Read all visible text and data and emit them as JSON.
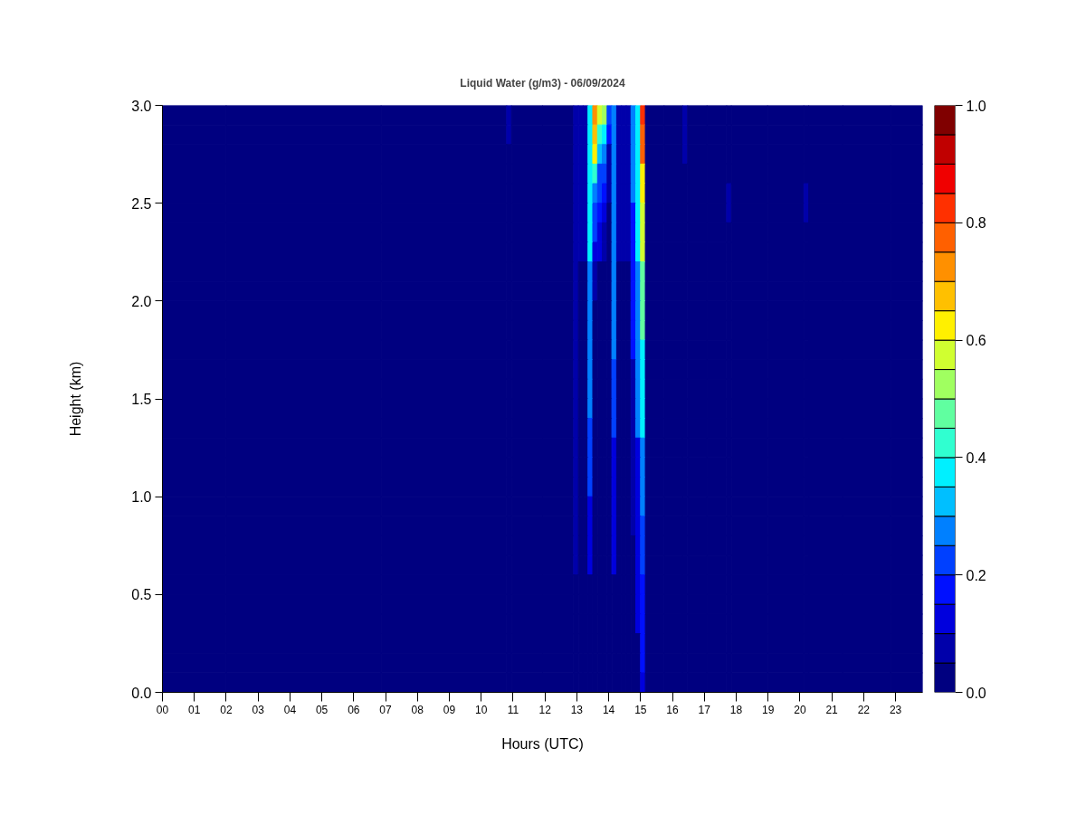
{
  "chart_data": {
    "type": "heatmap",
    "title": "Liquid Water (g/m3) - 06/09/2024",
    "xlabel": "Hours (UTC)",
    "ylabel": "Height (km)",
    "x": [
      1,
      3,
      10.725,
      10.875,
      11.025,
      12.825,
      12.975,
      13.125,
      13.275,
      13.425,
      13.575,
      13.725,
      13.875,
      14.025,
      14.175,
      14.325,
      14.475,
      14.625,
      14.775,
      14.925,
      15.075,
      15.225,
      16.25,
      16.4,
      16.55,
      17.625,
      17.775,
      17.925,
      20.05,
      20.2,
      20.35,
      22.35,
      23.35
    ],
    "cells": [
      [
        0,
        0,
        0,
        0.06,
        0,
        0,
        0.08,
        0.07,
        0.07,
        0.37,
        0.72,
        0.57,
        0.52,
        0.22,
        0.28,
        0.08,
        0.08,
        0.08,
        0.28,
        0.38,
        0.82,
        0,
        0,
        0.06,
        0,
        0,
        0,
        0,
        0,
        0,
        0,
        0,
        0
      ],
      [
        0,
        0,
        0,
        0.06,
        0,
        0,
        0.08,
        0.07,
        0.07,
        0.37,
        0.67,
        0.42,
        0.37,
        0.17,
        0.28,
        0.08,
        0.08,
        0.08,
        0.28,
        0.38,
        0.77,
        0,
        0,
        0.06,
        0,
        0,
        0,
        0,
        0,
        0,
        0,
        0,
        0
      ],
      [
        0,
        0,
        0,
        0,
        0,
        0,
        0.08,
        0.07,
        0.07,
        0.37,
        0.62,
        0.32,
        0.28,
        0.08,
        0.28,
        0.08,
        0.08,
        0.08,
        0.28,
        0.38,
        0.77,
        0,
        0,
        0.06,
        0,
        0,
        0,
        0,
        0,
        0,
        0,
        0,
        0
      ],
      [
        0,
        0,
        0,
        0,
        0,
        0,
        0.08,
        0.07,
        0.07,
        0.37,
        0.42,
        0.22,
        0.22,
        0.08,
        0.28,
        0.08,
        0.08,
        0.08,
        0.28,
        0.38,
        0.63,
        0,
        0,
        0,
        0,
        0,
        0,
        0,
        0,
        0,
        0,
        0,
        0
      ],
      [
        0,
        0,
        0,
        0,
        0,
        0,
        0.08,
        0.07,
        0.07,
        0.37,
        0.28,
        0.22,
        0.17,
        0.08,
        0.28,
        0.06,
        0.06,
        0.06,
        0.28,
        0.38,
        0.63,
        0,
        0,
        0,
        0,
        0,
        0.06,
        0,
        0,
        0.06,
        0,
        0,
        0
      ],
      [
        0,
        0,
        0,
        0,
        0,
        0,
        0.08,
        0.07,
        0.07,
        0.37,
        0.22,
        0.17,
        0.12,
        0,
        0.28,
        0.06,
        0.06,
        0.06,
        0.17,
        0.38,
        0.58,
        0,
        0,
        0,
        0,
        0,
        0.06,
        0,
        0,
        0.06,
        0,
        0,
        0
      ],
      [
        0,
        0,
        0,
        0,
        0,
        0,
        0.08,
        0.07,
        0.07,
        0.37,
        0.22,
        0.12,
        0.08,
        0,
        0.28,
        0.06,
        0.06,
        0.06,
        0.17,
        0.38,
        0.58,
        0,
        0,
        0,
        0,
        0,
        0,
        0,
        0,
        0,
        0,
        0,
        0
      ],
      [
        0,
        0,
        0,
        0,
        0,
        0,
        0.08,
        0.07,
        0.07,
        0.37,
        0.12,
        0.12,
        0.08,
        0,
        0.28,
        0.06,
        0.06,
        0.06,
        0.17,
        0.38,
        0.58,
        0,
        0,
        0,
        0,
        0,
        0,
        0,
        0,
        0,
        0,
        0,
        0
      ],
      [
        0,
        0,
        0,
        0,
        0,
        0,
        0.06,
        0,
        0,
        0.27,
        0.06,
        0,
        0,
        0,
        0.28,
        0,
        0,
        0,
        0.17,
        0.26,
        0.48,
        0,
        0,
        0,
        0,
        0,
        0,
        0,
        0,
        0,
        0,
        0,
        0
      ],
      [
        0,
        0,
        0,
        0,
        0,
        0,
        0.06,
        0,
        0,
        0.27,
        0.06,
        0,
        0,
        0,
        0.28,
        0,
        0,
        0,
        0.17,
        0.26,
        0.48,
        0,
        0,
        0,
        0,
        0,
        0,
        0,
        0,
        0,
        0,
        0,
        0
      ],
      [
        0,
        0,
        0,
        0,
        0,
        0,
        0.06,
        0,
        0,
        0.27,
        0,
        0,
        0,
        0,
        0.28,
        0,
        0,
        0,
        0.17,
        0.26,
        0.48,
        0,
        0,
        0,
        0,
        0,
        0,
        0,
        0,
        0,
        0,
        0,
        0
      ],
      [
        0,
        0,
        0,
        0,
        0,
        0,
        0.06,
        0,
        0,
        0.27,
        0,
        0,
        0,
        0,
        0.28,
        0,
        0,
        0,
        0.17,
        0.26,
        0.48,
        0,
        0,
        0,
        0,
        0,
        0,
        0,
        0,
        0,
        0,
        0,
        0
      ],
      [
        0,
        0,
        0,
        0,
        0,
        0,
        0.06,
        0,
        0,
        0.27,
        0,
        0,
        0,
        0,
        0.28,
        0,
        0,
        0,
        0.17,
        0.26,
        0.38,
        0,
        0,
        0,
        0,
        0,
        0,
        0,
        0,
        0,
        0,
        0,
        0
      ],
      [
        0,
        0,
        0,
        0,
        0,
        0,
        0.06,
        0,
        0,
        0.27,
        0,
        0,
        0,
        0,
        0.22,
        0,
        0,
        0,
        0.07,
        0.26,
        0.38,
        0,
        0,
        0,
        0,
        0,
        0,
        0,
        0,
        0,
        0,
        0,
        0
      ],
      [
        0,
        0,
        0,
        0,
        0,
        0,
        0.06,
        0,
        0,
        0.27,
        0,
        0,
        0,
        0,
        0.22,
        0,
        0,
        0,
        0.07,
        0.26,
        0.38,
        0,
        0,
        0,
        0,
        0,
        0,
        0,
        0,
        0,
        0,
        0,
        0
      ],
      [
        0,
        0,
        0,
        0,
        0,
        0,
        0.06,
        0,
        0,
        0.27,
        0,
        0,
        0,
        0,
        0.22,
        0,
        0,
        0,
        0.07,
        0.26,
        0.38,
        0,
        0,
        0,
        0,
        0,
        0,
        0,
        0,
        0,
        0,
        0,
        0
      ],
      [
        0,
        0,
        0,
        0,
        0,
        0,
        0.06,
        0,
        0,
        0.22,
        0,
        0,
        0,
        0,
        0.22,
        0,
        0,
        0,
        0.07,
        0.26,
        0.38,
        0,
        0,
        0,
        0,
        0,
        0,
        0,
        0,
        0,
        0,
        0,
        0
      ],
      [
        0,
        0,
        0,
        0,
        0,
        0,
        0.06,
        0,
        0,
        0.22,
        0,
        0,
        0,
        0,
        0.12,
        0,
        0,
        0,
        0.07,
        0.12,
        0.28,
        0,
        0,
        0,
        0,
        0,
        0,
        0,
        0,
        0,
        0,
        0,
        0
      ],
      [
        0,
        0,
        0,
        0,
        0,
        0,
        0.06,
        0,
        0,
        0.22,
        0,
        0,
        0,
        0,
        0.12,
        0,
        0,
        0,
        0.07,
        0.12,
        0.28,
        0,
        0,
        0,
        0,
        0,
        0,
        0,
        0,
        0,
        0,
        0,
        0
      ],
      [
        0,
        0,
        0,
        0,
        0,
        0,
        0.06,
        0,
        0,
        0.22,
        0,
        0,
        0,
        0,
        0.12,
        0,
        0,
        0,
        0.07,
        0.12,
        0.28,
        0,
        0,
        0,
        0,
        0,
        0,
        0,
        0,
        0,
        0,
        0,
        0
      ],
      [
        0,
        0,
        0,
        0,
        0,
        0,
        0.06,
        0,
        0,
        0.12,
        0,
        0,
        0,
        0,
        0.12,
        0,
        0,
        0,
        0.07,
        0.12,
        0.28,
        0,
        0,
        0,
        0,
        0,
        0,
        0,
        0,
        0,
        0,
        0,
        0
      ],
      [
        0,
        0,
        0,
        0,
        0,
        0,
        0.06,
        0,
        0,
        0.12,
        0,
        0,
        0,
        0,
        0.12,
        0,
        0,
        0,
        0.07,
        0.12,
        0.22,
        0,
        0,
        0,
        0,
        0,
        0,
        0,
        0,
        0,
        0,
        0,
        0
      ],
      [
        0,
        0,
        0,
        0,
        0,
        0,
        0.06,
        0,
        0,
        0.12,
        0,
        0,
        0,
        0,
        0.12,
        0,
        0,
        0,
        0,
        0.12,
        0.22,
        0,
        0,
        0,
        0,
        0,
        0,
        0,
        0,
        0,
        0,
        0,
        0
      ],
      [
        0,
        0,
        0,
        0,
        0,
        0,
        0.06,
        0,
        0,
        0.12,
        0,
        0,
        0,
        0,
        0.12,
        0,
        0,
        0,
        0,
        0.12,
        0.22,
        0,
        0,
        0,
        0,
        0,
        0,
        0,
        0,
        0,
        0,
        0,
        0
      ],
      [
        0,
        0,
        0,
        0,
        0,
        0,
        0,
        0,
        0,
        0,
        0,
        0,
        0,
        0,
        0,
        0,
        0,
        0,
        0,
        0.12,
        0.17,
        0,
        0,
        0,
        0,
        0,
        0,
        0,
        0,
        0,
        0,
        0,
        0
      ],
      [
        0,
        0,
        0,
        0,
        0,
        0,
        0,
        0,
        0,
        0,
        0,
        0,
        0,
        0,
        0,
        0,
        0,
        0,
        0,
        0.12,
        0.17,
        0,
        0,
        0,
        0,
        0,
        0,
        0,
        0,
        0,
        0,
        0,
        0
      ],
      [
        0,
        0,
        0,
        0,
        0,
        0,
        0,
        0,
        0,
        0,
        0,
        0,
        0,
        0,
        0,
        0,
        0,
        0,
        0,
        0.12,
        0.17,
        0,
        0,
        0,
        0,
        0,
        0,
        0,
        0,
        0,
        0,
        0,
        0
      ],
      [
        0,
        0,
        0,
        0,
        0,
        0,
        0,
        0,
        0,
        0,
        0,
        0,
        0,
        0,
        0,
        0,
        0,
        0,
        0,
        0,
        0.17,
        0,
        0,
        0,
        0,
        0,
        0,
        0,
        0,
        0,
        0,
        0,
        0
      ],
      [
        0,
        0,
        0,
        0,
        0,
        0,
        0,
        0,
        0,
        0,
        0,
        0,
        0,
        0,
        0,
        0,
        0,
        0,
        0,
        0,
        0.17,
        0,
        0,
        0,
        0,
        0,
        0,
        0,
        0,
        0,
        0,
        0,
        0
      ],
      [
        0,
        0,
        0,
        0,
        0,
        0,
        0,
        0,
        0,
        0,
        0,
        0,
        0,
        0,
        0,
        0,
        0,
        0,
        0,
        0,
        0.12,
        0,
        0,
        0,
        0,
        0,
        0,
        0,
        0,
        0,
        0,
        0,
        0
      ]
    ],
    "xlim": [
      0,
      23.85
    ],
    "xticks": [
      {
        "value": 0,
        "label": "00"
      },
      {
        "value": 1,
        "label": "01"
      },
      {
        "value": 2,
        "label": "02"
      },
      {
        "value": 3,
        "label": "03"
      },
      {
        "value": 4,
        "label": "04"
      },
      {
        "value": 5,
        "label": "05"
      },
      {
        "value": 6,
        "label": "06"
      },
      {
        "value": 7,
        "label": "07"
      },
      {
        "value": 8,
        "label": "08"
      },
      {
        "value": 9,
        "label": "09"
      },
      10,
      11,
      12,
      13,
      14,
      15,
      16,
      17,
      18,
      19,
      20,
      21,
      22,
      23
    ],
    "ylim": [
      0,
      3
    ],
    "yticks": [
      {
        "value": 0,
        "label": "0.0"
      },
      0.5,
      {
        "value": 1,
        "label": "1.0"
      },
      1.5,
      {
        "value": 2,
        "label": "2.0"
      },
      2.5,
      {
        "value": 3,
        "label": "3.0"
      }
    ],
    "clim": [
      0,
      1
    ],
    "cticks": [
      {
        "value": 0,
        "label": "0.0"
      },
      0.2,
      0.4,
      0.6,
      0.8,
      {
        "value": 1,
        "label": "1.0"
      }
    ]
  }
}
